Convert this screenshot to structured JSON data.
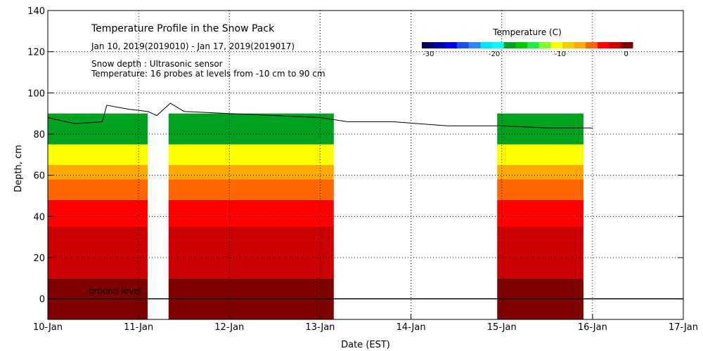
{
  "chart_data": {
    "type": "heatmap",
    "title": "Temperature Profile in the Snow Pack",
    "subtitle": "Jan 10, 2019(2019010) - Jan 17, 2019(2019017)",
    "notes": [
      "Snow depth : Ultrasonic sensor",
      "Temperature: 16 probes at levels from -10 cm to 90 cm"
    ],
    "xlabel": "Date (EST)",
    "ylabel": "Depth, cm",
    "x_ticks": [
      "10-Jan",
      "11-Jan",
      "12-Jan",
      "13-Jan",
      "14-Jan",
      "15-Jan",
      "16-Jan",
      "17-Jan"
    ],
    "xlim_days": [
      0,
      7
    ],
    "ylim": [
      -10,
      140
    ],
    "y_ticks": [
      0,
      20,
      40,
      60,
      80,
      100,
      120,
      140
    ],
    "grid": true,
    "ground_level_label": "ground level",
    "colorbar": {
      "label": "Temperature (C)",
      "range": [
        -31,
        1
      ],
      "tick_values": [
        -30,
        -20,
        -10,
        0
      ],
      "tick_labels": [
        "-30",
        "-20",
        "-10",
        "0"
      ],
      "colors": [
        "#000066",
        "#0000aa",
        "#0000e6",
        "#1a4fe0",
        "#2e86f0",
        "#00e5ff",
        "#00ffee",
        "#00a020",
        "#00c800",
        "#22e84a",
        "#80ff30",
        "#ffff00",
        "#f0d000",
        "#ffaa00",
        "#ff6600",
        "#ff0000",
        "#cc0000",
        "#7f0000"
      ]
    },
    "temperature_bands": [
      {
        "from_cm": -10,
        "to_cm": 10,
        "temperature_c": 0
      },
      {
        "from_cm": 10,
        "to_cm": 28,
        "temperature_c": -1
      },
      {
        "from_cm": 28,
        "to_cm": 35,
        "temperature_c": -2
      },
      {
        "from_cm": 35,
        "to_cm": 48,
        "temperature_c": -3
      },
      {
        "from_cm": 48,
        "to_cm": 58,
        "temperature_c": -5
      },
      {
        "from_cm": 58,
        "to_cm": 65,
        "temperature_c": -7
      },
      {
        "from_cm": 65,
        "to_cm": 75,
        "temperature_c": -11
      },
      {
        "from_cm": 75,
        "to_cm": 90,
        "temperature_c": -18
      }
    ],
    "data_segments": [
      {
        "start_day": 0.0,
        "end_day": 1.1
      },
      {
        "start_day": 1.33,
        "end_day": 3.15
      },
      {
        "start_day": 4.95,
        "end_day": 5.9
      }
    ],
    "snow_depth": [
      {
        "day": 0.0,
        "depth_cm": 88
      },
      {
        "day": 0.3,
        "depth_cm": 85
      },
      {
        "day": 0.6,
        "depth_cm": 86
      },
      {
        "day": 0.65,
        "depth_cm": 94
      },
      {
        "day": 0.9,
        "depth_cm": 92
      },
      {
        "day": 1.1,
        "depth_cm": 91
      },
      {
        "day": 1.2,
        "depth_cm": 89
      },
      {
        "day": 1.35,
        "depth_cm": 95
      },
      {
        "day": 1.5,
        "depth_cm": 91
      },
      {
        "day": 2.0,
        "depth_cm": 90
      },
      {
        "day": 2.5,
        "depth_cm": 89
      },
      {
        "day": 3.0,
        "depth_cm": 88
      },
      {
        "day": 3.3,
        "depth_cm": 86
      },
      {
        "day": 3.8,
        "depth_cm": 86
      },
      {
        "day": 4.4,
        "depth_cm": 84
      },
      {
        "day": 5.0,
        "depth_cm": 84
      },
      {
        "day": 5.5,
        "depth_cm": 83
      },
      {
        "day": 5.9,
        "depth_cm": 83
      },
      {
        "day": 6.0,
        "depth_cm": 83
      }
    ]
  }
}
